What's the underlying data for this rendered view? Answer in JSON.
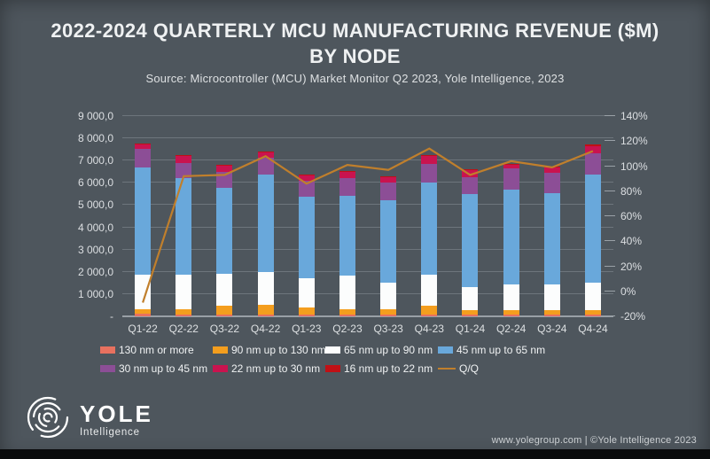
{
  "header": {
    "title_line1": "2022-2024 QUARTERLY MCU MANUFACTURING REVENUE ($M)",
    "title_line2": "BY NODE",
    "source": "Source: Microcontroller (MCU) Market Monitor Q2 2023, Yole Intelligence, 2023"
  },
  "chart_data": {
    "type": "bar",
    "subtype": "stacked-bars-with-line-overlay",
    "title": "2022-2024 Quarterly MCU Manufacturing Revenue ($M) by Node",
    "categories": [
      "Q1-22",
      "Q2-22",
      "Q3-22",
      "Q4-22",
      "Q1-23",
      "Q2-23",
      "Q3-23",
      "Q4-23",
      "Q1-24",
      "Q2-24",
      "Q3-24",
      "Q4-24"
    ],
    "series": [
      {
        "name": "130 nm or more",
        "color": "#e8715f",
        "values": [
          110,
          100,
          100,
          100,
          80,
          80,
          80,
          100,
          70,
          70,
          70,
          70
        ]
      },
      {
        "name": "90 nm up to 130 nm",
        "color": "#f49e1e",
        "values": [
          225,
          235,
          370,
          430,
          320,
          255,
          255,
          395,
          195,
          225,
          195,
          225
        ]
      },
      {
        "name": "65 nm up to 90 nm",
        "color": "#fcfdfd",
        "values": [
          1525,
          1525,
          1460,
          1460,
          1330,
          1485,
          1195,
          1395,
          1065,
          1140,
          1170,
          1235
        ]
      },
      {
        "name": "45 nm  up to 65 nm",
        "color": "#69a8db",
        "values": [
          4840,
          4360,
          3850,
          4390,
          3630,
          3600,
          3680,
          4115,
          4160,
          4255,
          4120,
          4825
        ]
      },
      {
        "name": "30 nm up to 45 nm",
        "color": "#8c4e96",
        "values": [
          810,
          690,
          730,
          730,
          715,
          785,
          795,
          840,
          755,
          955,
          890,
          955
        ]
      },
      {
        "name": "22 nm up to 30 nm",
        "color": "#c9134f",
        "values": [
          220,
          290,
          260,
          270,
          270,
          275,
          235,
          350,
          330,
          185,
          230,
          350
        ]
      },
      {
        "name": "16 nm up to 22 nm",
        "color": "#c01015",
        "values": [
          30,
          40,
          35,
          35,
          35,
          35,
          35,
          50,
          40,
          40,
          40,
          50
        ]
      }
    ],
    "line_series": {
      "name": "Q/Q",
      "color": "#c07f2c",
      "axis": "right",
      "values": [
        -9,
        92,
        93,
        108,
        86,
        101,
        97,
        114,
        93,
        104,
        99,
        112
      ]
    },
    "y_left": {
      "min": 0,
      "max": 9000,
      "tick_values": [
        9000,
        8000,
        7000,
        6000,
        5000,
        4000,
        3000,
        2000,
        1000,
        0
      ],
      "tick_labels": [
        "9 000,0",
        "8 000,0",
        "7 000,0",
        "6 000,0",
        "5 000,0",
        "4 000,0",
        "3 000,0",
        "2 000,0",
        "1 000,0",
        "-"
      ]
    },
    "y_right": {
      "min": -20,
      "max": 140,
      "tick_values": [
        140,
        120,
        100,
        80,
        60,
        40,
        20,
        0,
        -20
      ],
      "tick_labels": [
        "140%",
        "120%",
        "100%",
        "80%",
        "60%",
        "40%",
        "20%",
        "0%",
        "-20%"
      ]
    },
    "grid": "horizontal",
    "legend_position": "bottom"
  },
  "footer": {
    "logo_name": "YOLE",
    "logo_subtitle": "Intelligence",
    "credit": "www.yolegroup.com | ©Yole Intelligence 2023"
  }
}
